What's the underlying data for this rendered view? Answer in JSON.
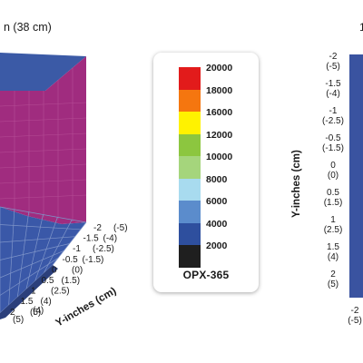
{
  "colors": {
    "surface_top": "#3b5aa6",
    "surface_face": "#a02c7f",
    "floor": "#3a58a8",
    "floor_grid": "#7f95c9",
    "right_plot": "#3a53a0"
  },
  "chart_data": [
    {
      "type": "heatmap",
      "view": "3d-surface",
      "title_partial": "n (38 cm)",
      "y_axis": {
        "label": "Y-inches (cm)",
        "ticks": [
          {
            "inch": "-2",
            "cm": "(-5)"
          },
          {
            "inch": "-1.5",
            "cm": "(-4)"
          },
          {
            "inch": "-1",
            "cm": "(-2.5)"
          },
          {
            "inch": "-0.5",
            "cm": "(-1.5)"
          },
          {
            "inch": "0",
            "cm": "(0)"
          },
          {
            "inch": "0.5",
            "cm": "(1.5)"
          },
          {
            "inch": "1",
            "cm": "(2.5)"
          },
          {
            "inch": "1.5",
            "cm": "(4)"
          },
          {
            "inch": "2",
            "cm": "(5)"
          }
        ]
      },
      "x_axis_partial_ticks": [
        "(5)",
        "(4)"
      ]
    },
    {
      "type": "heatmap",
      "view": "2d-color-map",
      "title_partial": "1",
      "y_axis": {
        "label": "Y-inches (cm)",
        "ticks": [
          {
            "inch": "-2",
            "cm": "(-5)"
          },
          {
            "inch": "-1.5",
            "cm": "(-4)"
          },
          {
            "inch": "-1",
            "cm": "(-2.5)"
          },
          {
            "inch": "-0.5",
            "cm": "(-1.5)"
          },
          {
            "inch": "0",
            "cm": "(0)"
          },
          {
            "inch": "0.5",
            "cm": "(1.5)"
          },
          {
            "inch": "1",
            "cm": "(2.5)"
          },
          {
            "inch": "1.5",
            "cm": "(4)"
          },
          {
            "inch": "2",
            "cm": "(5)"
          }
        ]
      },
      "x_axis_partial_ticks": [
        {
          "inch": "-2",
          "cm": "(-5)"
        }
      ]
    }
  ],
  "legend": {
    "title": "OPX-365",
    "levels": [
      {
        "value": 20000,
        "color": "#e21b1b"
      },
      {
        "value": 18000,
        "color": "#f5760f"
      },
      {
        "value": 16000,
        "color": "#fff200"
      },
      {
        "value": 12000,
        "color": "#8cc63f"
      },
      {
        "value": 10000,
        "color": "#a5d57c"
      },
      {
        "value": 8000,
        "color": "#a8dbef"
      },
      {
        "value": 6000,
        "color": "#5b8ccc"
      },
      {
        "value": 4000,
        "color": "#2e4f9e"
      },
      {
        "value": 2000,
        "color": "#1f1f1f"
      }
    ]
  }
}
